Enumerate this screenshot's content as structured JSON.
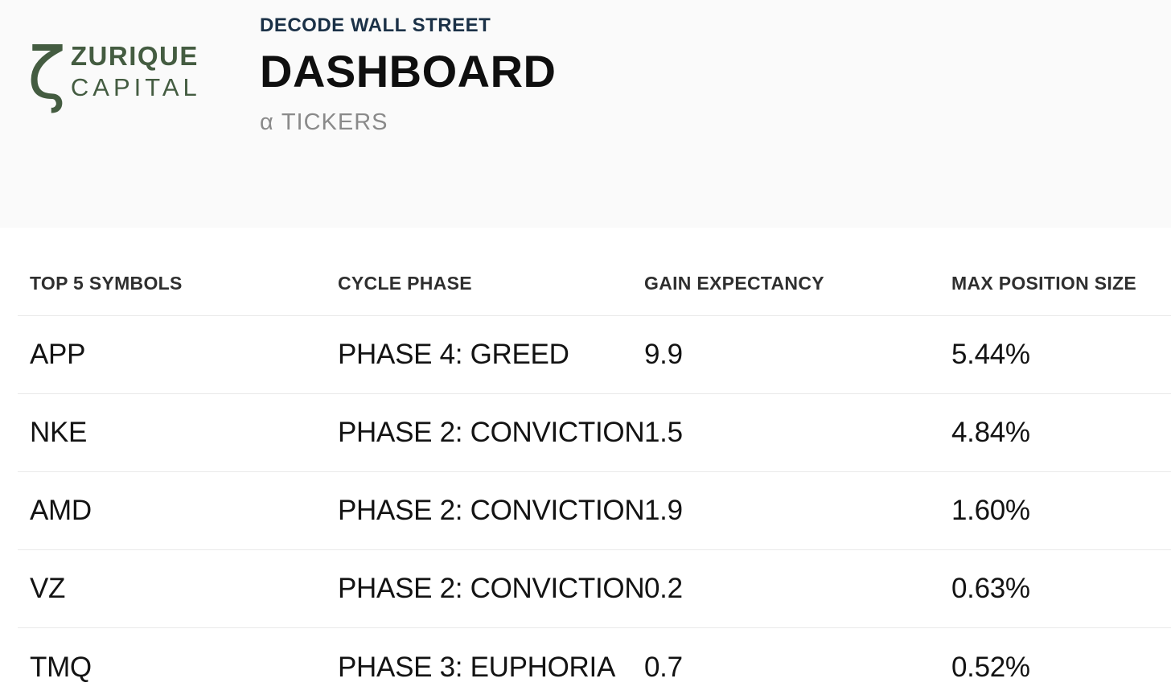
{
  "brand": {
    "glyph": "ζ",
    "name_line1": "ZURIQUE",
    "name_line2": "CAPITAL",
    "color": "#445c41"
  },
  "header": {
    "eyebrow": "DECODE WALL STREET",
    "title": "DASHBOARD",
    "subtitle": "α TICKERS",
    "eyebrow_color": "#1b3147",
    "subtitle_color": "#8a8a8a",
    "background_color": "#fafafa"
  },
  "table": {
    "columns": {
      "symbol": "TOP 5 SYMBOLS",
      "phase": "CYCLE PHASE",
      "gain": "GAIN EXPECTANCY",
      "max_position": "MAX POSITION SIZE"
    },
    "rows": [
      {
        "symbol": "APP",
        "phase": "PHASE 4: GREED",
        "gain": "9.9",
        "max_position": "5.44%"
      },
      {
        "symbol": "NKE",
        "phase": "PHASE 2: CONVICTION",
        "gain": "1.5",
        "max_position": "4.84%"
      },
      {
        "symbol": "AMD",
        "phase": "PHASE 2: CONVICTION",
        "gain": "1.9",
        "max_position": "1.60%"
      },
      {
        "symbol": "VZ",
        "phase": "PHASE 2: CONVICTION",
        "gain": "0.2",
        "max_position": "0.63%"
      },
      {
        "symbol": "TMQ",
        "phase": "PHASE 3: EUPHORIA",
        "gain": "0.7",
        "max_position": "0.52%"
      }
    ],
    "divider_color": "#e9e9e9"
  }
}
